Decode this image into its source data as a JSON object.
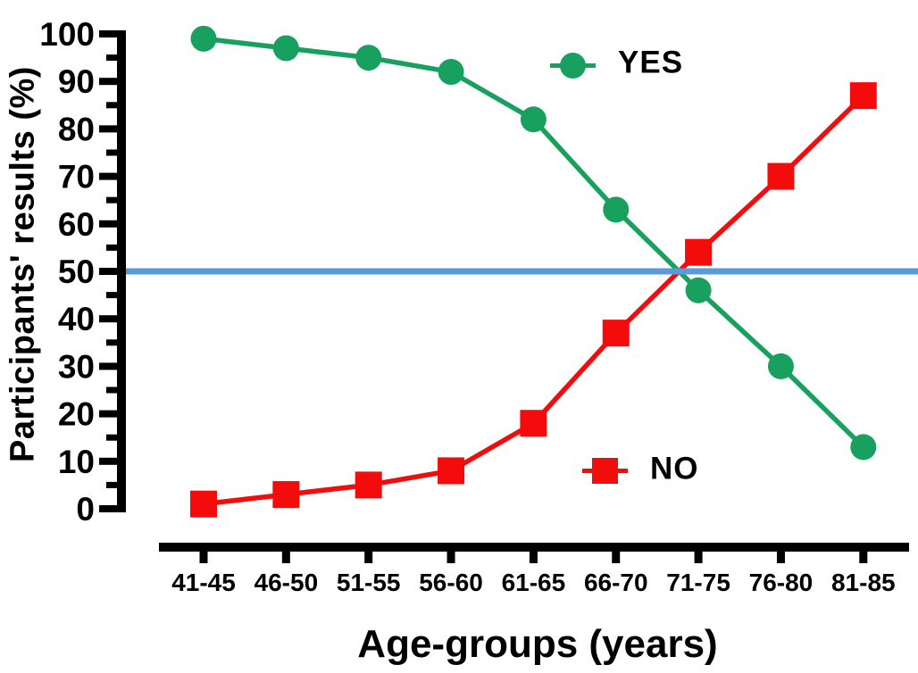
{
  "chart_data": {
    "type": "line",
    "title": "",
    "xlabel": "Age-groups (years)",
    "ylabel": "Participants' results (%)",
    "categories": [
      "41-45",
      "46-50",
      "51-55",
      "56-60",
      "61-65",
      "66-70",
      "71-75",
      "76-80",
      "81-85"
    ],
    "series": [
      {
        "name": "YES",
        "marker": "circle",
        "color": "#18a05e",
        "values": [
          99,
          97,
          95,
          92,
          82,
          63,
          46,
          30,
          13
        ]
      },
      {
        "name": "NO",
        "marker": "square",
        "color": "#f40b0b",
        "values": [
          1,
          3,
          5,
          8,
          18,
          37,
          54,
          70,
          87
        ]
      }
    ],
    "reference_line": {
      "y": 50,
      "color": "#5b9bd5"
    },
    "ylim": [
      0,
      100
    ],
    "yticks": [
      0,
      10,
      20,
      30,
      40,
      50,
      60,
      70,
      80,
      90,
      100
    ],
    "ytick_minor_step": 5,
    "grid": false,
    "axis_color": "#000000",
    "legend_position": "inside"
  }
}
